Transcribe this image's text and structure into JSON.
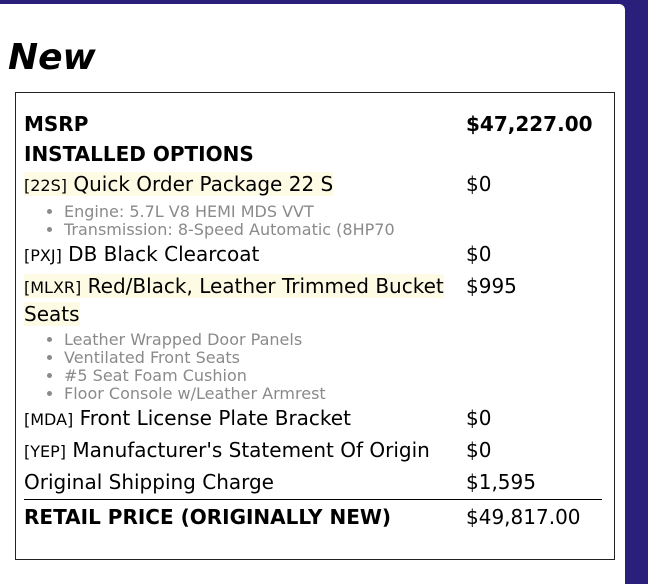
{
  "title": "New",
  "colors": {
    "background": "#2b1f7c",
    "highlight": "#fdfbe3",
    "muted_text": "#8a8a8a"
  },
  "msrp": {
    "label": "MSRP",
    "value": "$47,227.00"
  },
  "installed_options_label": "INSTALLED OPTIONS",
  "options": [
    {
      "code": "[22S]",
      "name": "Quick Order Package 22 S",
      "price": "$0",
      "highlighted": true,
      "details": [
        "Engine: 5.7L V8 HEMI MDS VVT",
        "Transmission: 8-Speed Automatic (8HP70"
      ]
    },
    {
      "code": "[PXJ]",
      "name": "DB Black Clearcoat",
      "price": "$0",
      "highlighted": false,
      "details": []
    },
    {
      "code": "[MLXR]",
      "name": "Red/Black, Leather Trimmed Bucket Seats",
      "price": "$995",
      "highlighted": true,
      "details": [
        "Leather Wrapped Door Panels",
        "Ventilated Front Seats",
        "#5 Seat Foam Cushion",
        "Floor Console w/Leather Armrest"
      ]
    },
    {
      "code": "[MDA]",
      "name": "Front License Plate Bracket",
      "price": "$0",
      "highlighted": false,
      "details": []
    },
    {
      "code": "[YEP]",
      "name": "Manufacturer's Statement Of Origin",
      "price": "$0",
      "highlighted": false,
      "details": []
    }
  ],
  "shipping": {
    "label": "Original Shipping Charge",
    "value": "$1,595"
  },
  "retail": {
    "label": "RETAIL PRICE (ORIGINALLY NEW)",
    "value": "$49,817.00"
  }
}
